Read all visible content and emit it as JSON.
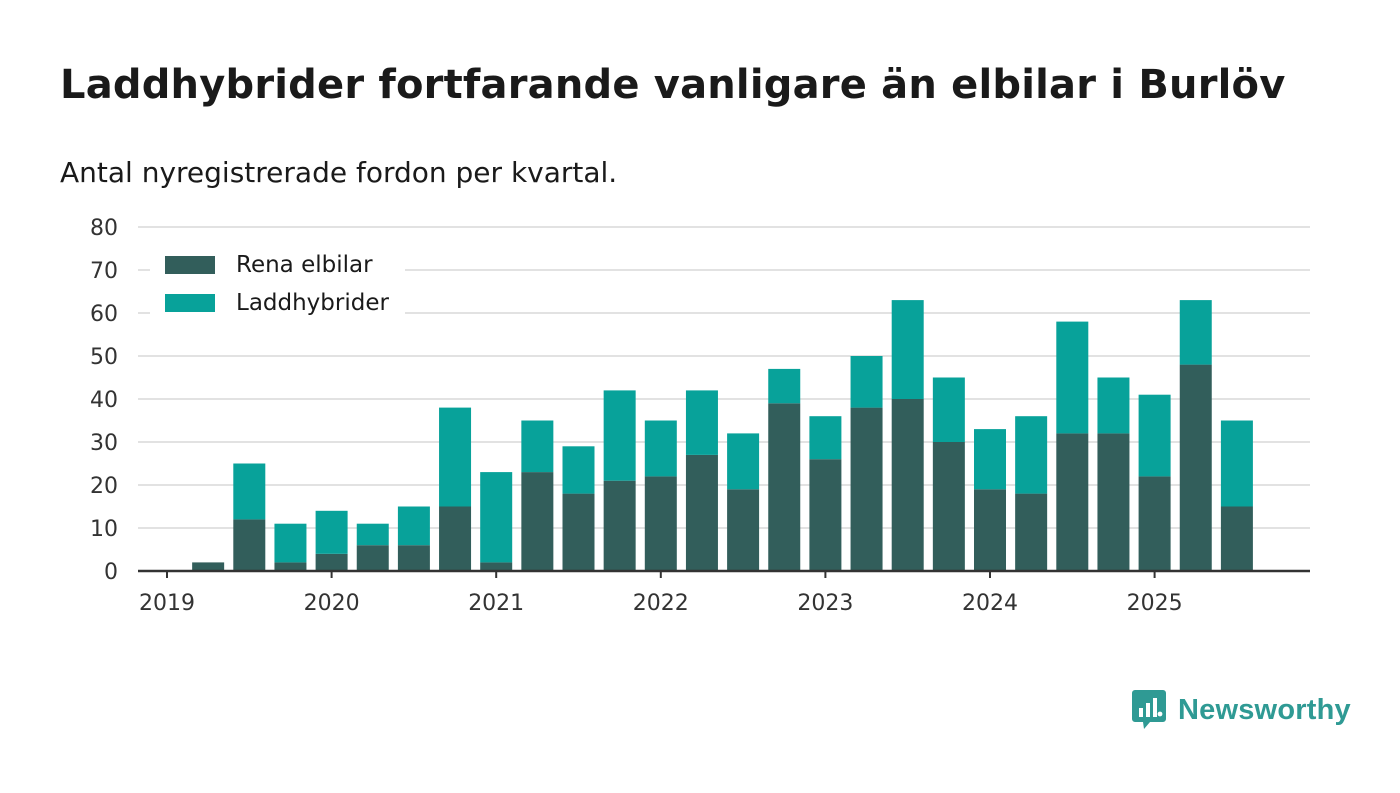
{
  "title": "Laddhybrider fortfarande vanligare än elbilar i Burlöv",
  "subtitle": "Antal nyregistrerade fordon per kvartal.",
  "brand": {
    "name": "Newsworthy",
    "icon": "newsworthy-logo-icon",
    "color": "#2f9a94"
  },
  "colors": {
    "elbilar": "#325e5b",
    "laddhybrider": "#08a29a",
    "grid": "#d9d9d9",
    "axis": "#333333"
  },
  "chart_data": {
    "type": "bar",
    "stacked": true,
    "categories": [
      "2019 Q1",
      "2019 Q2",
      "2019 Q3",
      "2019 Q4",
      "2020 Q1",
      "2020 Q2",
      "2020 Q3",
      "2020 Q4",
      "2021 Q1",
      "2021 Q2",
      "2021 Q3",
      "2021 Q4",
      "2022 Q1",
      "2022 Q2",
      "2022 Q3",
      "2022 Q4",
      "2023 Q1",
      "2023 Q2",
      "2023 Q3",
      "2023 Q4",
      "2024 Q1",
      "2024 Q2",
      "2024 Q3",
      "2024 Q4",
      "2025 Q1",
      "2025 Q2",
      "2025 Q3"
    ],
    "series": [
      {
        "name": "Rena elbilar",
        "values": [
          0,
          2,
          12,
          2,
          4,
          6,
          6,
          15,
          2,
          23,
          18,
          21,
          22,
          27,
          19,
          39,
          26,
          38,
          40,
          30,
          19,
          18,
          32,
          32,
          22,
          48,
          15
        ]
      },
      {
        "name": "Laddhybrider",
        "values": [
          0,
          0,
          13,
          9,
          10,
          5,
          9,
          23,
          21,
          12,
          11,
          21,
          13,
          15,
          13,
          8,
          10,
          12,
          23,
          15,
          14,
          18,
          26,
          13,
          19,
          15,
          20
        ]
      }
    ],
    "x_ticks": [
      "2019",
      "2020",
      "2021",
      "2022",
      "2023",
      "2024",
      "2025"
    ],
    "y_ticks": [
      0,
      10,
      20,
      30,
      40,
      50,
      60,
      70,
      80
    ],
    "ylim": [
      0,
      80
    ],
    "xlabel": "",
    "ylabel": "",
    "legend": "top-left",
    "grid": true
  }
}
